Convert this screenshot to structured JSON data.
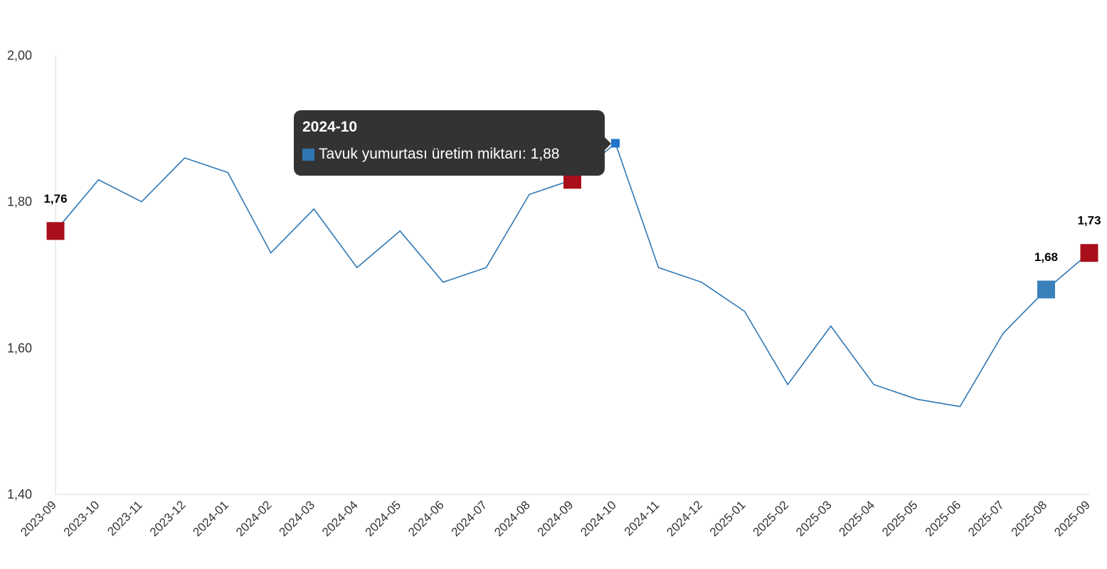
{
  "chart_data": {
    "type": "line",
    "x": [
      "2023-09",
      "2023-10",
      "2023-11",
      "2023-12",
      "2024-01",
      "2024-02",
      "2024-03",
      "2024-04",
      "2024-05",
      "2024-06",
      "2024-07",
      "2024-08",
      "2024-09",
      "2024-10",
      "2024-11",
      "2024-12",
      "2025-01",
      "2025-02",
      "2025-03",
      "2025-04",
      "2025-05",
      "2025-06",
      "2025-07",
      "2025-08",
      "2025-09"
    ],
    "series": [
      {
        "name": "Tavuk yumurtası üretim miktarı",
        "values": [
          1.76,
          1.83,
          1.8,
          1.86,
          1.84,
          1.73,
          1.79,
          1.71,
          1.76,
          1.69,
          1.71,
          1.81,
          1.83,
          1.88,
          1.71,
          1.69,
          1.65,
          1.55,
          1.63,
          1.55,
          1.53,
          1.52,
          1.62,
          1.68,
          1.73
        ],
        "color": "#2f77b4"
      }
    ],
    "ylim": [
      1.4,
      2.0
    ],
    "yticks": [
      1.4,
      1.6,
      1.8,
      2.0
    ],
    "ytick_labels": [
      "1,40",
      "1,60",
      "1,80",
      "2,00"
    ],
    "highlighted_points": [
      {
        "x": "2023-09",
        "label": "1,76",
        "color": "#a80f1a"
      },
      {
        "x": "2024-09",
        "label": "1,83",
        "color": "#a80f1a"
      },
      {
        "x": "2025-08",
        "label": "1,68",
        "color": "#3a80ba"
      },
      {
        "x": "2025-09",
        "label": "1,73",
        "color": "#a80f1a"
      }
    ],
    "grid": false,
    "title": "",
    "xlabel": "",
    "ylabel": ""
  },
  "tooltip": {
    "title": "2024-10",
    "series_label": "Tavuk yumurtası üretim miktarı",
    "separator": ": ",
    "value": "1,88",
    "swatch_color": "#2f77b4",
    "active_x": "2024-10"
  }
}
